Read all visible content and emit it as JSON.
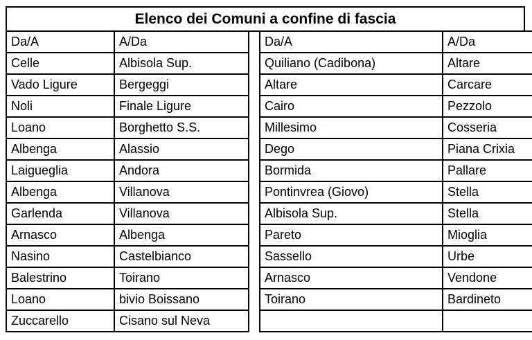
{
  "title": "Elenco dei Comuni a confine di fascia",
  "colors": {
    "border": "#000000",
    "text": "#000000",
    "background": "#ffffff"
  },
  "left_table": {
    "headers": [
      "Da/A",
      "A/Da"
    ],
    "rows": [
      [
        "Celle",
        "Albisola Sup."
      ],
      [
        "Vado Ligure",
        "Bergeggi"
      ],
      [
        "Noli",
        "Finale Ligure"
      ],
      [
        "Loano",
        "Borghetto S.S."
      ],
      [
        "Albenga",
        "Alassio"
      ],
      [
        "Laigueglia",
        "Andora"
      ],
      [
        "Albenga",
        "Villanova"
      ],
      [
        "Garlenda",
        "Villanova"
      ],
      [
        "Arnasco",
        "Albenga"
      ],
      [
        "Nasino",
        "Castelbianco"
      ],
      [
        "Balestrino",
        "Toirano"
      ],
      [
        "Loano",
        "bivio Boissano"
      ],
      [
        "Zuccarello",
        "Cisano sul Neva"
      ]
    ]
  },
  "right_table": {
    "headers": [
      "Da/A",
      "A/Da"
    ],
    "rows": [
      [
        "Quiliano (Cadibona)",
        "Altare"
      ],
      [
        "Altare",
        "Carcare"
      ],
      [
        "Cairo",
        "Pezzolo"
      ],
      [
        "Millesimo",
        "Cosseria"
      ],
      [
        "Dego",
        "Piana Crixia"
      ],
      [
        "Bormida",
        "Pallare"
      ],
      [
        "Pontinvrea (Giovo)",
        "Stella"
      ],
      [
        "Albisola Sup.",
        "Stella"
      ],
      [
        "Pareto",
        "Mioglia"
      ],
      [
        "Sassello",
        "Urbe"
      ],
      [
        "Arnasco",
        "Vendone"
      ],
      [
        "Toirano",
        "Bardineto"
      ],
      [
        "",
        ""
      ]
    ]
  }
}
